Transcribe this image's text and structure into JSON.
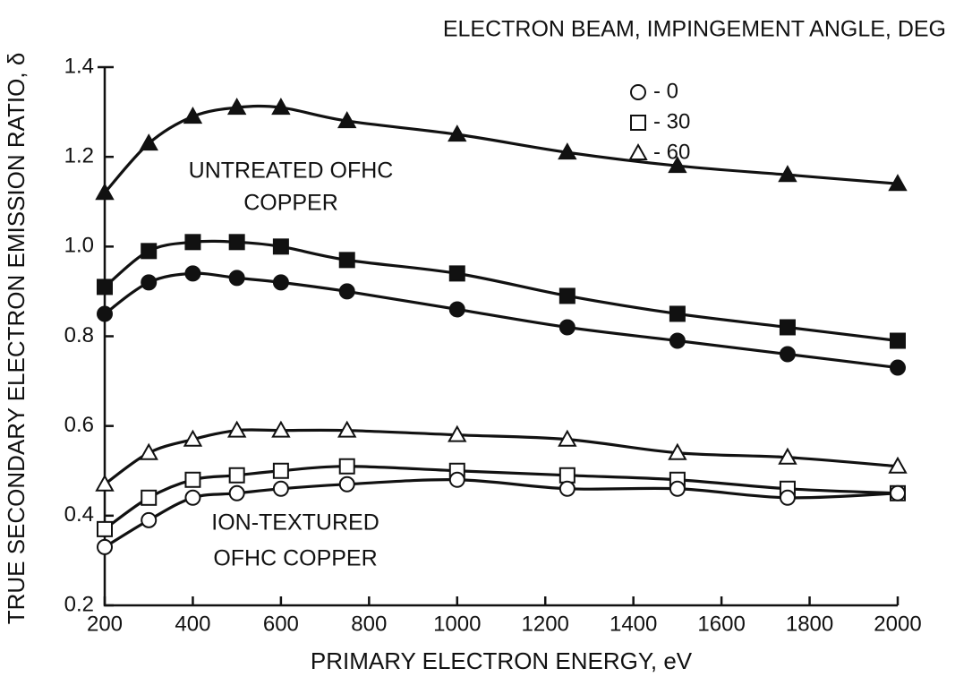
{
  "chart_data": {
    "type": "line",
    "x_label": "PRIMARY ELECTRON ENERGY, eV",
    "y_label": "TRUE SECONDARY ELECTRON EMISSION RATIO, δ",
    "legend": {
      "title": "ELECTRON BEAM, IMPINGEMENT ANGLE, DEG",
      "entries": [
        {
          "marker": "circle",
          "label": "- 0"
        },
        {
          "marker": "square",
          "label": "- 30"
        },
        {
          "marker": "triangle",
          "label": "- 60"
        }
      ]
    },
    "annotations": [
      "UNTREATED OFHC",
      "COPPER",
      "ION-TEXTURED",
      "OFHC COPPER"
    ],
    "x": [
      200,
      300,
      400,
      500,
      600,
      750,
      1000,
      1250,
      1500,
      1750,
      2000
    ],
    "series": [
      {
        "marker": "triangle",
        "filled": true,
        "color": "#111111",
        "values": [
          1.12,
          1.23,
          1.29,
          1.31,
          1.31,
          1.28,
          1.25,
          1.21,
          1.18,
          1.16,
          1.14
        ]
      },
      {
        "marker": "square",
        "filled": true,
        "color": "#111111",
        "values": [
          0.91,
          0.99,
          1.01,
          1.01,
          1.0,
          0.97,
          0.94,
          0.89,
          0.85,
          0.82,
          0.79
        ]
      },
      {
        "marker": "circle",
        "filled": true,
        "color": "#111111",
        "values": [
          0.85,
          0.92,
          0.94,
          0.93,
          0.92,
          0.9,
          0.86,
          0.82,
          0.79,
          0.76,
          0.73
        ]
      },
      {
        "marker": "triangle",
        "filled": false,
        "color": "#111111",
        "values": [
          0.47,
          0.54,
          0.57,
          0.59,
          0.59,
          0.59,
          0.58,
          0.57,
          0.54,
          0.53,
          0.51
        ]
      },
      {
        "marker": "square",
        "filled": false,
        "color": "#111111",
        "values": [
          0.37,
          0.44,
          0.48,
          0.49,
          0.5,
          0.51,
          0.5,
          0.49,
          0.48,
          0.46,
          0.45
        ]
      },
      {
        "marker": "circle",
        "filled": false,
        "color": "#111111",
        "values": [
          0.33,
          0.39,
          0.44,
          0.45,
          0.46,
          0.47,
          0.48,
          0.46,
          0.46,
          0.44,
          0.45
        ]
      }
    ],
    "xlim": [
      200,
      2000
    ],
    "ylim": [
      0.2,
      1.4
    ],
    "xticks": [
      200,
      400,
      600,
      800,
      1000,
      1200,
      1400,
      1600,
      1800,
      2000
    ],
    "yticks": [
      0.2,
      0.4,
      0.6,
      0.8,
      {
        "value": 1,
        "label": "1.0"
      },
      1.2,
      1.4
    ],
    "grid": false
  }
}
